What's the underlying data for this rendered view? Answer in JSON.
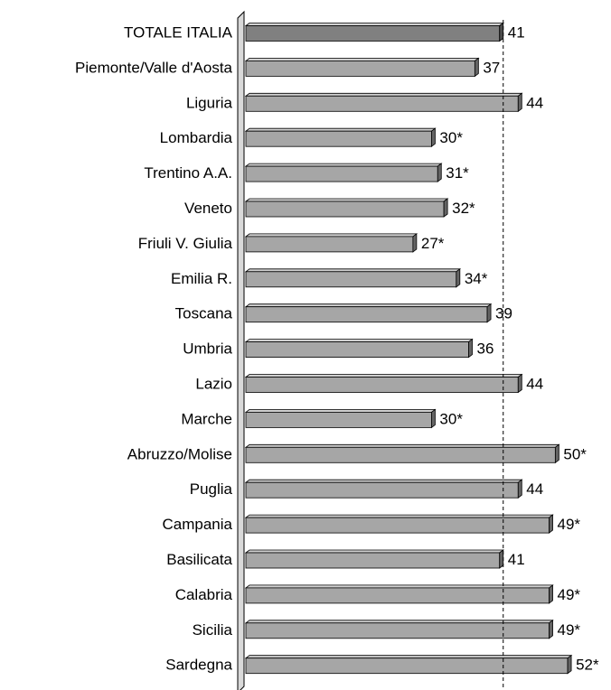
{
  "chart_data": {
    "type": "bar",
    "categories": [
      "TOTALE ITALIA",
      "Piemonte/Valle d'Aosta",
      "Liguria",
      "Lombardia",
      "Trentino A.A.",
      "Veneto",
      "Friuli V. Giulia",
      "Emilia R.",
      "Toscana",
      "Umbria",
      "Lazio",
      "Marche",
      "Abruzzo/Molise",
      "Puglia",
      "Campania",
      "Basilicata",
      "Calabria",
      "Sicilia",
      "Sardegna"
    ],
    "values": [
      41,
      37,
      44,
      30,
      31,
      32,
      27,
      34,
      39,
      36,
      44,
      30,
      50,
      44,
      49,
      41,
      49,
      49,
      52
    ],
    "value_labels": [
      "41",
      "37",
      "44",
      "30*",
      "31*",
      "32*",
      "27*",
      "34*",
      "39",
      "36",
      "44",
      "30*",
      "50*",
      "44",
      "49*",
      "41",
      "49*",
      "49*",
      "52*"
    ],
    "colors": [
      "#808080",
      "#a6a6a6",
      "#a6a6a6",
      "#a6a6a6",
      "#a6a6a6",
      "#a6a6a6",
      "#a6a6a6",
      "#a6a6a6",
      "#a6a6a6",
      "#a6a6a6",
      "#a6a6a6",
      "#a6a6a6",
      "#a6a6a6",
      "#a6a6a6",
      "#a6a6a6",
      "#a6a6a6",
      "#a6a6a6",
      "#a6a6a6",
      "#a6a6a6"
    ],
    "xlim": [
      0,
      59
    ]
  }
}
